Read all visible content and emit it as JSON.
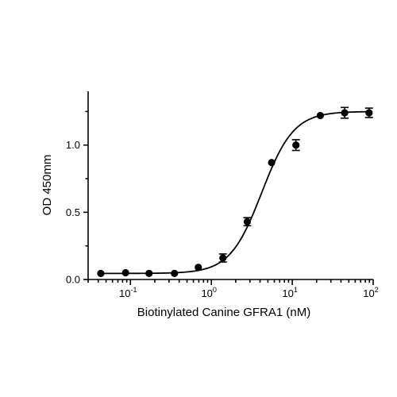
{
  "chart_data": {
    "type": "scatter",
    "title": "",
    "xlabel": "Biotinylated Canine GFRA1 (nM)",
    "ylabel": "OD 450mm",
    "xscale": "log",
    "xlim": [
      0.03,
      100
    ],
    "ylim": [
      0,
      1.4
    ],
    "x_ticks": [
      {
        "value": 0.1,
        "base": "10",
        "exp": "-1"
      },
      {
        "value": 1,
        "base": "10",
        "exp": "0"
      },
      {
        "value": 10,
        "base": "10",
        "exp": "1"
      },
      {
        "value": 100,
        "base": "10",
        "exp": "2"
      }
    ],
    "y_ticks": [
      {
        "value": 0,
        "label": "0.0"
      },
      {
        "value": 0.5,
        "label": "0.5"
      },
      {
        "value": 1.0,
        "label": "1.0"
      }
    ],
    "grid": false,
    "legend": "none",
    "series": [
      {
        "points": [
          {
            "x": 0.043,
            "y": 0.045,
            "err": 0.005
          },
          {
            "x": 0.087,
            "y": 0.05,
            "err": 0.005
          },
          {
            "x": 0.17,
            "y": 0.045,
            "err": 0.005
          },
          {
            "x": 0.35,
            "y": 0.045,
            "err": 0.005
          },
          {
            "x": 0.69,
            "y": 0.09,
            "err": 0.01
          },
          {
            "x": 1.39,
            "y": 0.16,
            "err": 0.03
          },
          {
            "x": 2.78,
            "y": 0.43,
            "err": 0.03
          },
          {
            "x": 5.56,
            "y": 0.87,
            "err": 0.01
          },
          {
            "x": 11.1,
            "y": 1.0,
            "err": 0.04
          },
          {
            "x": 22.2,
            "y": 1.22,
            "err": 0.01
          },
          {
            "x": 44.4,
            "y": 1.24,
            "err": 0.04
          },
          {
            "x": 88.9,
            "y": 1.24,
            "err": 0.035
          }
        ],
        "fit": {
          "model": "4PL",
          "bottom": 0.045,
          "top": 1.25,
          "ec50": 4.2,
          "hill": 2.2
        },
        "color": "#000000"
      }
    ]
  }
}
